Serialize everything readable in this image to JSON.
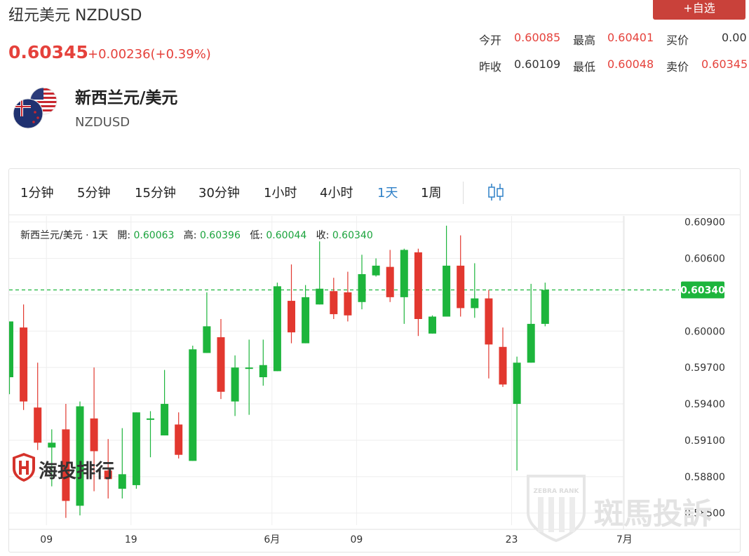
{
  "header": {
    "title": "纽元美元 NZDUSD",
    "add_watchlist": "+自选",
    "price": "0.60345",
    "change": "+0.00236(+0.39%)"
  },
  "stats": {
    "open_label": "今开",
    "open": "0.60085",
    "high_label": "最高",
    "high": "0.60401",
    "bid_label": "买价",
    "bid": "0.00",
    "prev_close_label": "昨收",
    "prev_close": "0.60109",
    "low_label": "最低",
    "low": "0.60048",
    "ask_label": "卖价",
    "ask": "0.60345"
  },
  "instrument": {
    "name": "新西兰元/美元",
    "code": "NZDUSD"
  },
  "tabs": [
    {
      "label": "1分钟",
      "active": false
    },
    {
      "label": "5分钟",
      "active": false
    },
    {
      "label": "15分钟",
      "active": false
    },
    {
      "label": "30分钟",
      "active": false
    },
    {
      "label": "1小时",
      "active": false
    },
    {
      "label": "4小时",
      "active": false
    },
    {
      "label": "1天",
      "active": true
    },
    {
      "label": "1周",
      "active": false
    }
  ],
  "info_line": {
    "prefix": "新西兰元/美元 · 1天",
    "open_label": "開:",
    "open": "0.60063",
    "high_label": "高:",
    "high": "0.60396",
    "low_label": "低:",
    "low": "0.60044",
    "close_label": "收:",
    "close": "0.60340"
  },
  "watermarks": {
    "left": "海投排行",
    "right": "斑馬投訴",
    "badge": "ZEBRA RANK"
  },
  "colors": {
    "up": "#1db53c",
    "down": "#e2382f",
    "accent": "#2f80c7",
    "brand_red": "#c9413a"
  },
  "chart_data": {
    "type": "candlestick",
    "y_ticks": [
      "0.60900",
      "0.60600",
      "0.60300",
      "0.60000",
      "0.59700",
      "0.59400",
      "0.59100",
      "0.58800",
      "0.58500"
    ],
    "ylim": [
      0.584,
      0.6095
    ],
    "x_labels": [
      {
        "label": "09",
        "index": 2
      },
      {
        "label": "19",
        "index": 8
      },
      {
        "label": "6月",
        "index": 18
      },
      {
        "label": "09",
        "index": 24
      },
      {
        "label": "23",
        "index": 35
      },
      {
        "label": "7月",
        "index": 43
      }
    ],
    "last_price": "0.60340",
    "candles": [
      {
        "o": 0.5962,
        "h": 0.6008,
        "l": 0.5948,
        "c": 0.6008
      },
      {
        "o": 0.6003,
        "h": 0.6022,
        "l": 0.5935,
        "c": 0.5942
      },
      {
        "o": 0.5937,
        "h": 0.5974,
        "l": 0.5902,
        "c": 0.5908
      },
      {
        "o": 0.5904,
        "h": 0.5919,
        "l": 0.5872,
        "c": 0.5908
      },
      {
        "o": 0.5919,
        "h": 0.594,
        "l": 0.5846,
        "c": 0.586
      },
      {
        "o": 0.5856,
        "h": 0.5942,
        "l": 0.5848,
        "c": 0.5938
      },
      {
        "o": 0.5928,
        "h": 0.597,
        "l": 0.5868,
        "c": 0.5901
      },
      {
        "o": 0.5885,
        "h": 0.5911,
        "l": 0.5862,
        "c": 0.5878
      },
      {
        "o": 0.587,
        "h": 0.592,
        "l": 0.5862,
        "c": 0.5882
      },
      {
        "o": 0.5873,
        "h": 0.5933,
        "l": 0.587,
        "c": 0.5933
      },
      {
        "o": 0.5927,
        "h": 0.5934,
        "l": 0.5896,
        "c": 0.5928
      },
      {
        "o": 0.5914,
        "h": 0.5968,
        "l": 0.5914,
        "c": 0.594
      },
      {
        "o": 0.5923,
        "h": 0.5933,
        "l": 0.5895,
        "c": 0.5898
      },
      {
        "o": 0.5893,
        "h": 0.5988,
        "l": 0.5893,
        "c": 0.5985
      },
      {
        "o": 0.5982,
        "h": 0.6032,
        "l": 0.5982,
        "c": 0.6004
      },
      {
        "o": 0.5995,
        "h": 0.601,
        "l": 0.5944,
        "c": 0.595
      },
      {
        "o": 0.5942,
        "h": 0.598,
        "l": 0.593,
        "c": 0.597
      },
      {
        "o": 0.597,
        "h": 0.5993,
        "l": 0.5931,
        "c": 0.597
      },
      {
        "o": 0.5962,
        "h": 0.5993,
        "l": 0.5955,
        "c": 0.5972
      },
      {
        "o": 0.5967,
        "h": 0.604,
        "l": 0.5967,
        "c": 0.6037
      },
      {
        "o": 0.6025,
        "h": 0.6055,
        "l": 0.599,
        "c": 0.5999
      },
      {
        "o": 0.599,
        "h": 0.6038,
        "l": 0.599,
        "c": 0.6028
      },
      {
        "o": 0.6022,
        "h": 0.6074,
        "l": 0.6022,
        "c": 0.6035
      },
      {
        "o": 0.6033,
        "h": 0.6044,
        "l": 0.601,
        "c": 0.6014
      },
      {
        "o": 0.6032,
        "h": 0.6049,
        "l": 0.6008,
        "c": 0.6013
      },
      {
        "o": 0.6024,
        "h": 0.6063,
        "l": 0.6018,
        "c": 0.6047
      },
      {
        "o": 0.6046,
        "h": 0.606,
        "l": 0.6045,
        "c": 0.6054
      },
      {
        "o": 0.6053,
        "h": 0.6067,
        "l": 0.6024,
        "c": 0.6028
      },
      {
        "o": 0.6028,
        "h": 0.6068,
        "l": 0.6006,
        "c": 0.6067
      },
      {
        "o": 0.6065,
        "h": 0.6068,
        "l": 0.5996,
        "c": 0.601
      },
      {
        "o": 0.5998,
        "h": 0.6013,
        "l": 0.5998,
        "c": 0.6012
      },
      {
        "o": 0.6012,
        "h": 0.6087,
        "l": 0.6012,
        "c": 0.6054
      },
      {
        "o": 0.6054,
        "h": 0.6079,
        "l": 0.6012,
        "c": 0.6019
      },
      {
        "o": 0.6019,
        "h": 0.6056,
        "l": 0.6011,
        "c": 0.6027
      },
      {
        "o": 0.6027,
        "h": 0.6034,
        "l": 0.5961,
        "c": 0.5989
      },
      {
        "o": 0.5987,
        "h": 0.6003,
        "l": 0.5954,
        "c": 0.5956
      },
      {
        "o": 0.594,
        "h": 0.5979,
        "l": 0.5885,
        "c": 0.5974
      },
      {
        "o": 0.5974,
        "h": 0.6039,
        "l": 0.5974,
        "c": 0.6006
      },
      {
        "o": 0.6006,
        "h": 0.604,
        "l": 0.6004,
        "c": 0.6034
      }
    ]
  }
}
